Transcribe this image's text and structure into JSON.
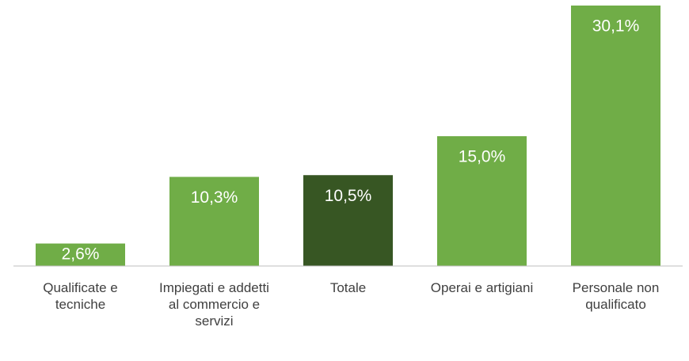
{
  "chart_data": {
    "type": "bar",
    "categories": [
      "Qualificate e tecniche",
      "Impiegati e addetti al commercio e servizi",
      "Totale",
      "Operai e artigiani",
      "Personale non qualificato"
    ],
    "values": [
      2.6,
      10.3,
      10.5,
      15.0,
      30.1
    ],
    "value_labels": [
      "2,6%",
      "10,3%",
      "10,5%",
      "15,0%",
      "30,1%"
    ],
    "colors": [
      "#70ad47",
      "#70ad47",
      "#375623",
      "#70ad47",
      "#70ad47"
    ]
  }
}
